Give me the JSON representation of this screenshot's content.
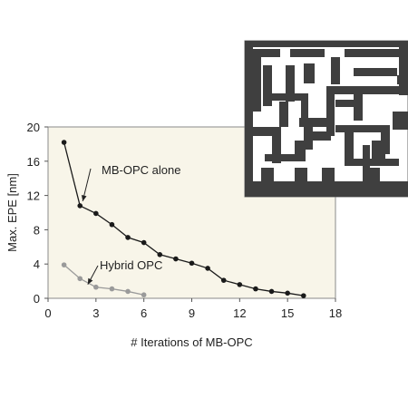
{
  "chart_data": {
    "type": "line",
    "title": "",
    "xlabel": "# Iterations of MB-OPC",
    "ylabel": "Max. EPE [nm]",
    "xlim": [
      0,
      18
    ],
    "ylim": [
      0,
      20
    ],
    "xticks": [
      0,
      3,
      6,
      9,
      12,
      15,
      18
    ],
    "yticks": [
      0,
      4,
      8,
      12,
      16,
      20
    ],
    "grid": false,
    "background": "#f8f5e9",
    "series": [
      {
        "name": "MB-OPC alone",
        "color": "#1a1a1a",
        "x": [
          1,
          2,
          3,
          4,
          5,
          6,
          7,
          8,
          9,
          10,
          11,
          12,
          13,
          14,
          15,
          16
        ],
        "y": [
          18.2,
          10.8,
          9.9,
          8.6,
          7.1,
          6.5,
          5.1,
          4.6,
          4.1,
          3.5,
          2.1,
          1.6,
          1.1,
          0.8,
          0.6,
          0.3
        ]
      },
      {
        "name": "Hybrid OPC",
        "color": "#9a9a9a",
        "x": [
          1,
          2,
          3,
          4,
          5,
          6
        ],
        "y": [
          3.9,
          2.3,
          1.3,
          1.1,
          0.8,
          0.4
        ]
      }
    ],
    "annotations": [
      {
        "text": "MB-OPC alone",
        "series": 0,
        "point": 1
      },
      {
        "text": "Hybrid OPC",
        "series": 1,
        "point": 2
      }
    ],
    "inset": {
      "type": "mask-layout-image",
      "colors": {
        "fill": "#3f3f3f",
        "background": "#ffffff"
      }
    }
  }
}
